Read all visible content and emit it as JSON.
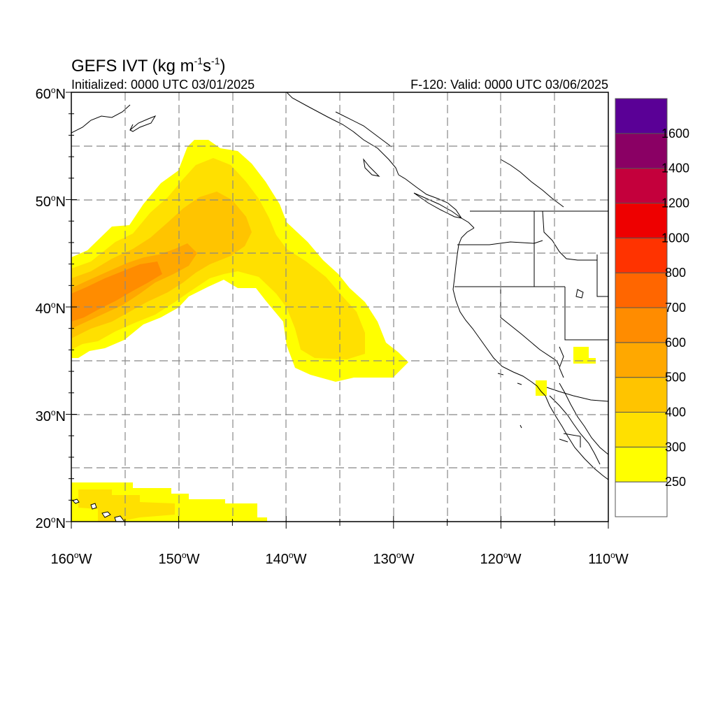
{
  "header": {
    "title_main": "GEFS IVT (kg m",
    "title_exp1": "-1",
    "title_mid": "s",
    "title_exp2": "-1",
    "title_end": ")",
    "initialized": "Initialized: 0000 UTC 03/01/2025",
    "valid": "F-120: Valid: 0000 UTC 03/06/2025"
  },
  "axes": {
    "lat_labels": [
      "60",
      "50",
      "40",
      "30",
      "20"
    ],
    "lat_suffix": "N",
    "lon_labels": [
      "160",
      "150",
      "140",
      "130",
      "120",
      "110"
    ],
    "lon_suffix": "W",
    "degree_mark": "o",
    "lat_range": [
      20,
      60
    ],
    "lon_range": [
      -160,
      -110
    ],
    "grid": true
  },
  "colorbar": {
    "labels": [
      "250",
      "300",
      "400",
      "500",
      "600",
      "700",
      "800",
      "1000",
      "1200",
      "1400",
      "1600"
    ],
    "colors": [
      "#ffffff",
      "#ffff00",
      "#ffe000",
      "#ffc400",
      "#ffa800",
      "#ff8c00",
      "#ff6600",
      "#ff3300",
      "#ee0000",
      "#c4003c",
      "#8a0064",
      "#5a0096"
    ]
  },
  "ivt_field": {
    "units": "kg m-1 s-1",
    "features": [
      {
        "type": "atmospheric-river",
        "core_value": 600,
        "core_position": "40-43N, 160-154W"
      },
      {
        "type": "ivt-lobe",
        "value": 400,
        "position": "44-52N, 150-144W"
      },
      {
        "type": "ivt-plume",
        "value": 300,
        "position": "33-42N, 140-129W"
      },
      {
        "type": "ivt-patch",
        "value": 250,
        "position": "20-24N, 160-142W"
      }
    ]
  }
}
